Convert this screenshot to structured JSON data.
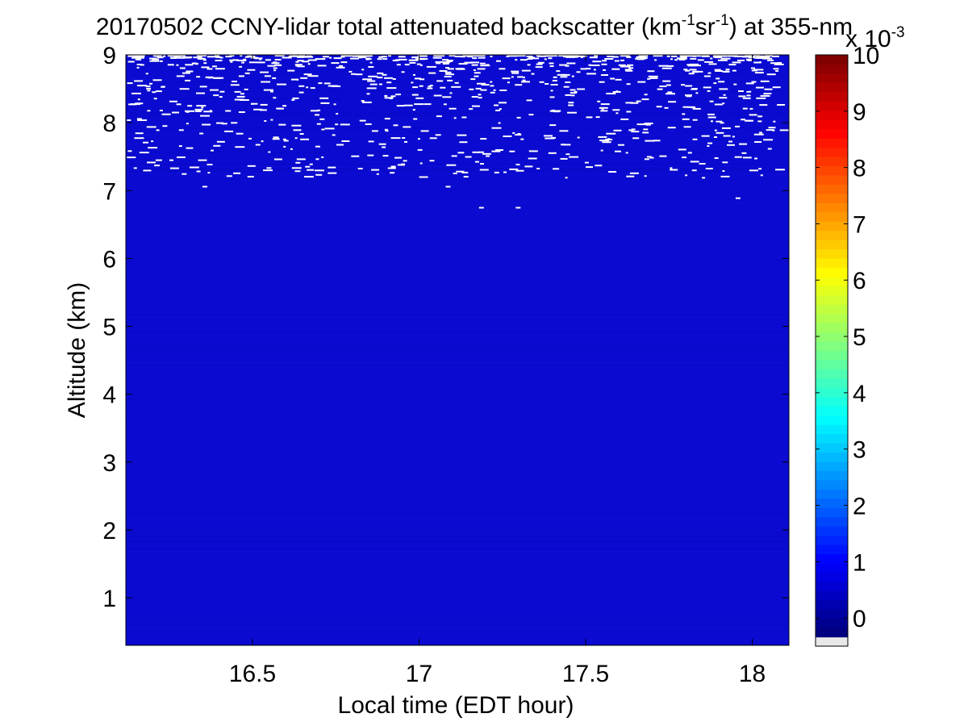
{
  "chart_data": {
    "type": "heatmap",
    "title": {
      "prefix": "20170502 CCNY-lidar total attenuated backscatter (km",
      "sup1": "-1",
      "mid": "sr",
      "sup2": "-1",
      "suffix": ") at 355-nm"
    },
    "xlabel": "Local time (EDT hour)",
    "ylabel": "Altitude (km)",
    "xlim": [
      16.12,
      18.11
    ],
    "ylim": [
      0.3,
      9.0
    ],
    "xticks": [
      16.5,
      17,
      17.5,
      18
    ],
    "xtick_labels": [
      "16.5",
      "17",
      "17.5",
      "18"
    ],
    "yticks": [
      1,
      2,
      3,
      4,
      5,
      6,
      7,
      8,
      9
    ],
    "ytick_labels": [
      "1",
      "2",
      "3",
      "4",
      "5",
      "6",
      "7",
      "8",
      "9"
    ],
    "colorbar": {
      "colormap": "jet",
      "clim": [
        -0.5,
        10
      ],
      "ticks": [
        0,
        1,
        2,
        3,
        4,
        5,
        6,
        7,
        8,
        9,
        10
      ],
      "tick_labels": [
        "0",
        "1",
        "2",
        "3",
        "4",
        "5",
        "6",
        "7",
        "8",
        "9",
        "10"
      ],
      "multiplier_base": "x 10",
      "multiplier_exp": "-3",
      "below_range_color": "#e8e8e8"
    },
    "field": {
      "background_value": 0.9,
      "dominant_color": "#0a0ad0",
      "noise_onset_altitude_km": 7.2,
      "noise_color": "#ffffff"
    }
  }
}
